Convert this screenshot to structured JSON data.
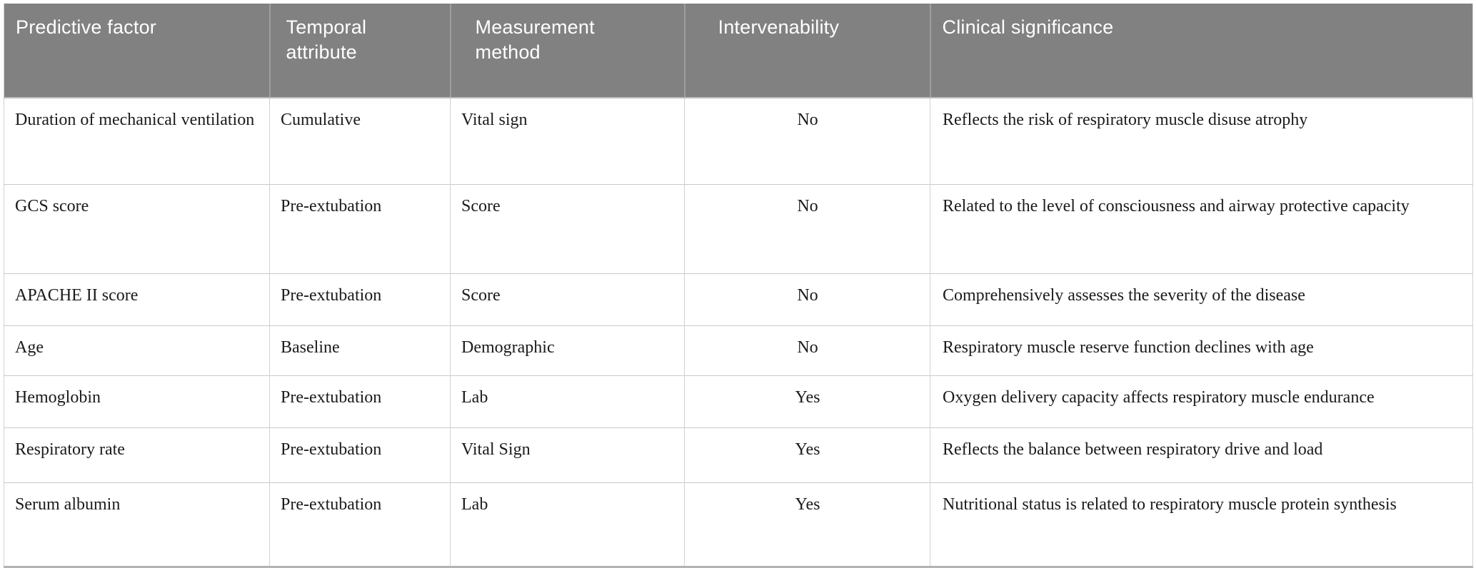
{
  "table": {
    "columns": [
      {
        "label": "Predictive factor",
        "align": "left"
      },
      {
        "label": "Temporal attribute",
        "align": "left"
      },
      {
        "label": "Measurement method",
        "align": "left"
      },
      {
        "label": "Intervenability",
        "align": "left"
      },
      {
        "label": "Clinical significance",
        "align": "left"
      }
    ],
    "rows": [
      [
        "Duration of mechanical ventilation",
        "Cumulative",
        "Vital sign",
        "No",
        "Reflects the risk of respiratory muscle disuse atrophy"
      ],
      [
        "GCS score",
        "Pre-extubation",
        "Score",
        "No",
        "Related to the level of consciousness and airway protective capacity"
      ],
      [
        "APACHE II score",
        "Pre-extubation",
        "Score",
        "No",
        "Comprehensively assesses the severity of the disease"
      ],
      [
        "Age",
        "Baseline",
        "Demographic",
        "No",
        "Respiratory muscle reserve function declines with age"
      ],
      [
        "Hemoglobin",
        "Pre-extubation",
        "Lab",
        "Yes",
        "Oxygen delivery capacity affects respiratory muscle endurance"
      ],
      [
        "Respiratory rate",
        "Pre-extubation",
        "Vital Sign",
        "Yes",
        "Reflects the balance between respiratory drive and load"
      ],
      [
        "Serum albumin",
        "Pre-extubation",
        "Lab",
        "Yes",
        "Nutritional status is related to respiratory muscle protein synthesis"
      ]
    ],
    "colors": {
      "header_bg": "#818181",
      "header_text": "#ffffff",
      "body_text": "#1b1b1b",
      "row_rule": "#c9c9c9",
      "column_rule": "#d2d2d2",
      "bottom_rule": "#b3b3b3"
    }
  }
}
